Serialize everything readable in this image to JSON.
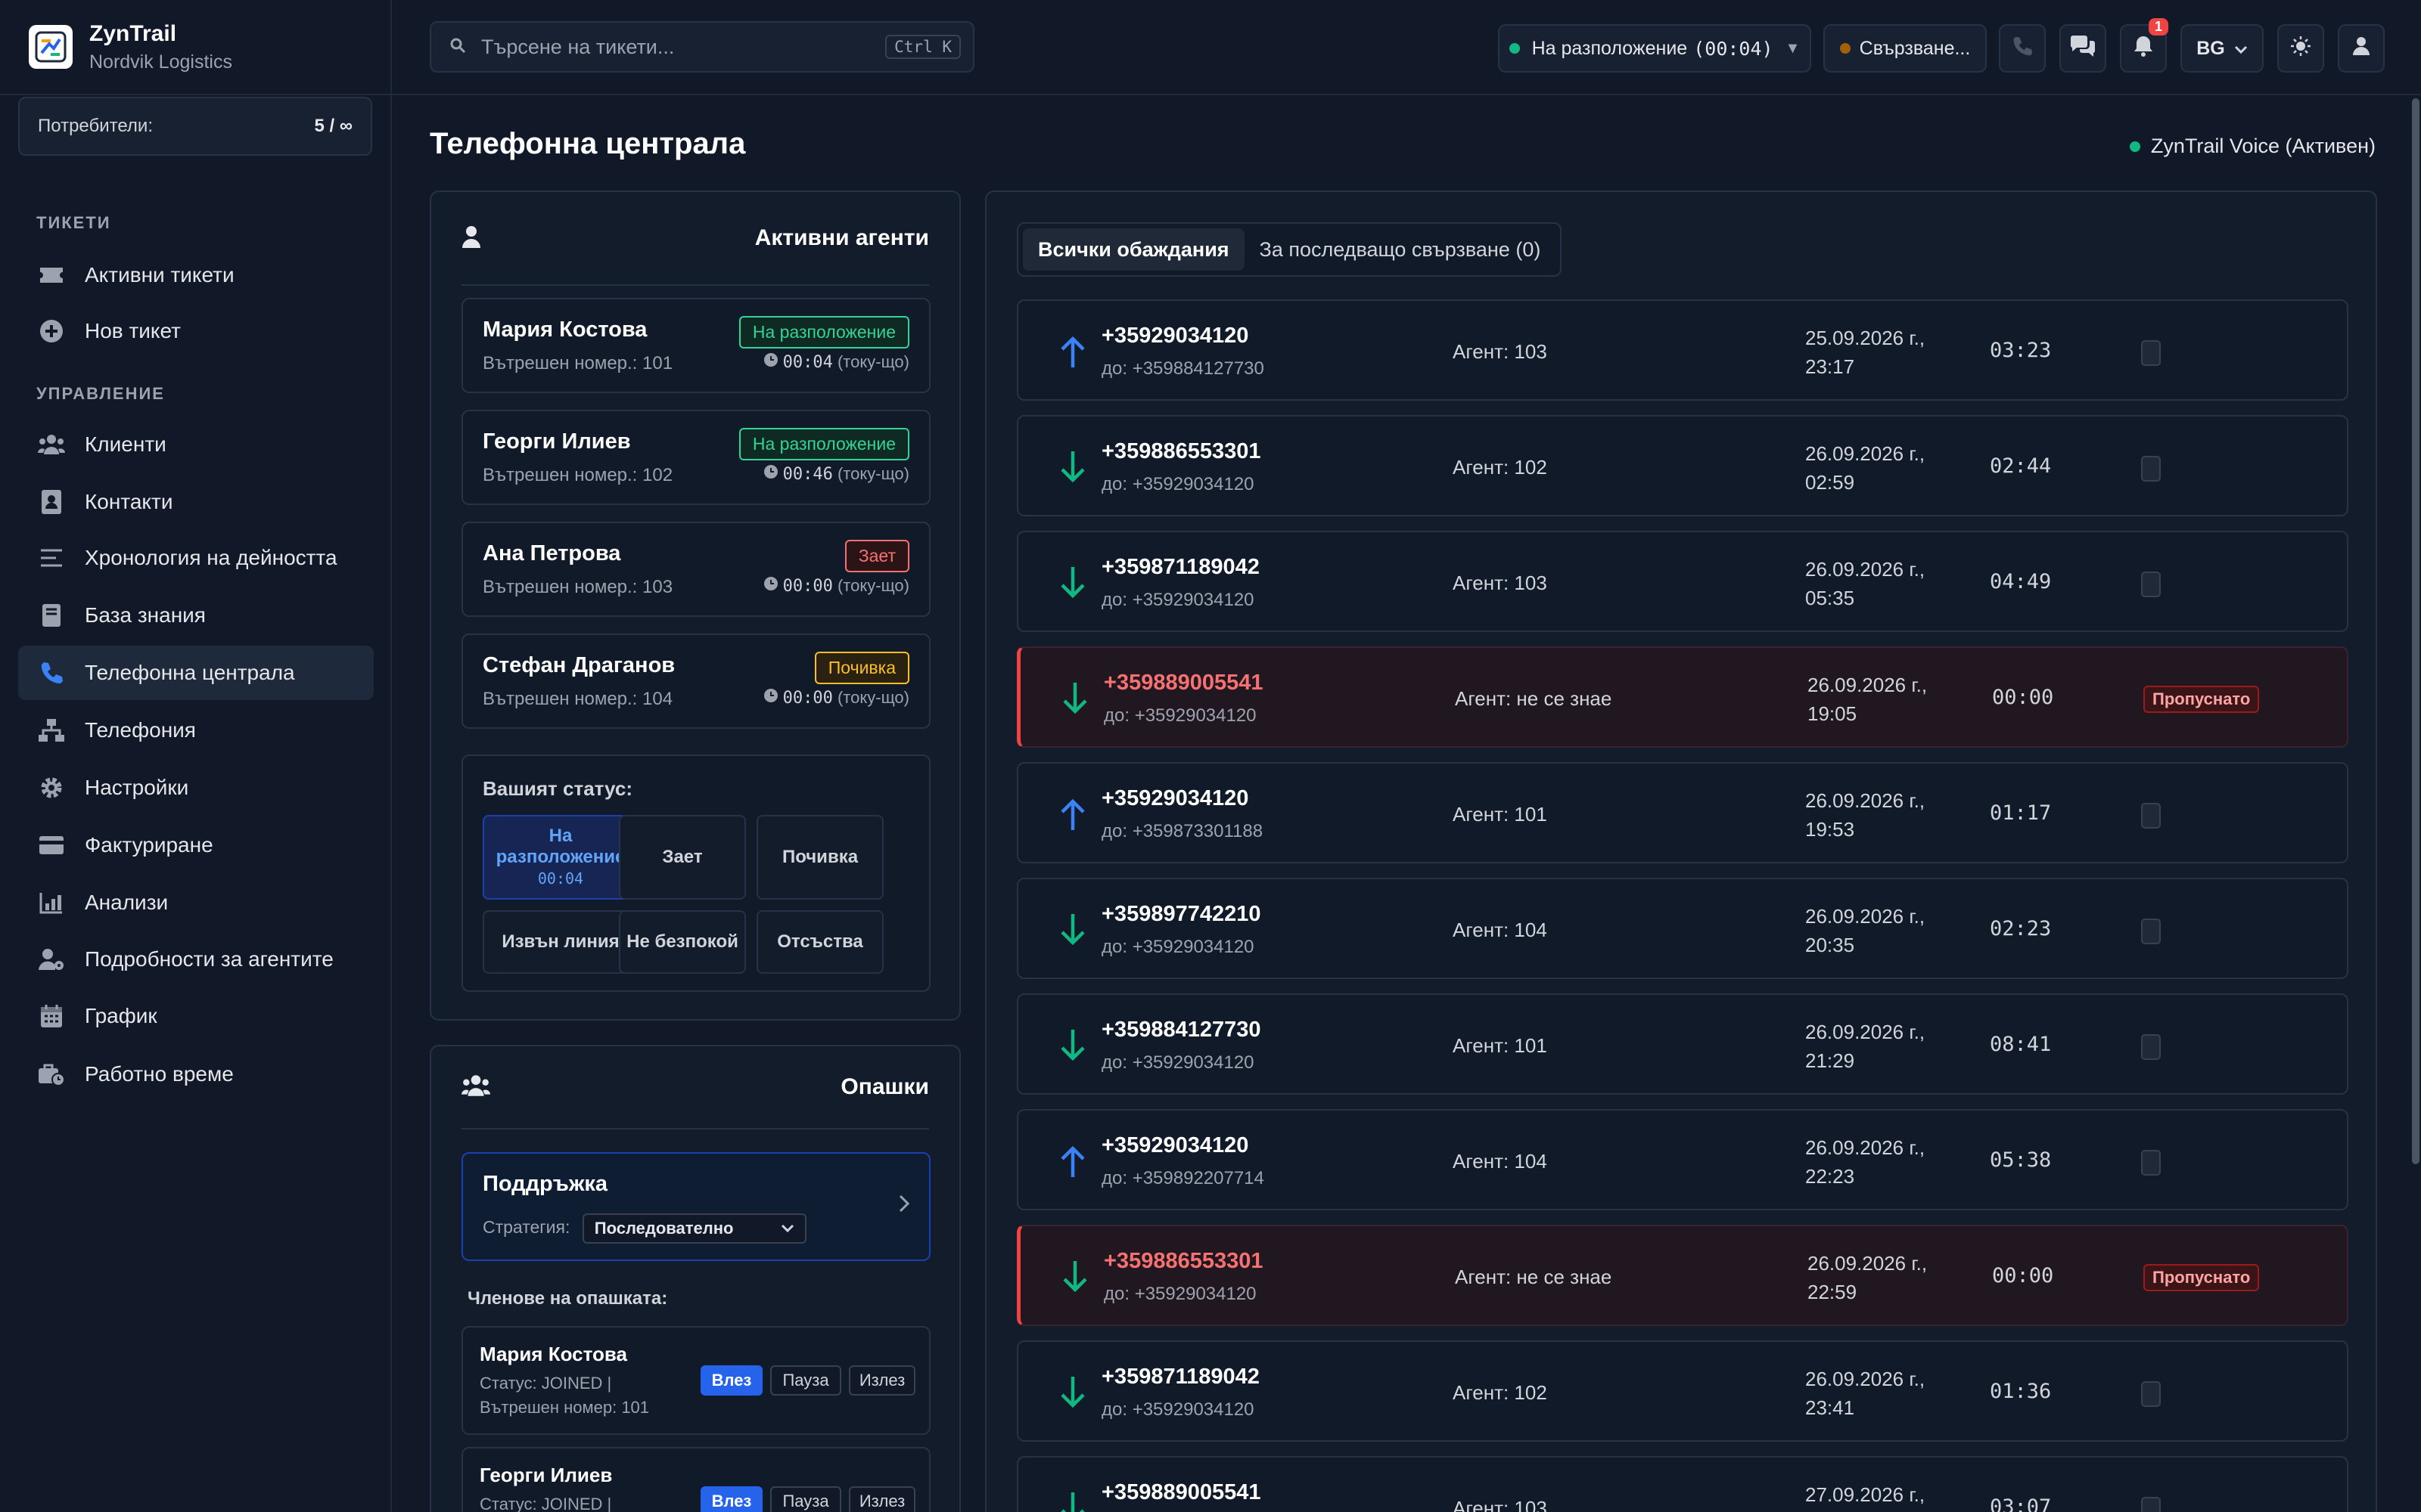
{
  "brand": {
    "name": "ZynTrail",
    "org": "Nordvik Logistics"
  },
  "users": {
    "label": "Потребители:",
    "count": "5 / ∞"
  },
  "nav": {
    "section_tickets": "ТИКЕТИ",
    "section_manage": "УПРАВЛЕНИЕ",
    "items": [
      {
        "label": "Активни тикети",
        "icon": "ticket-icon"
      },
      {
        "label": "Нов тикет",
        "icon": "plus-circle-icon"
      },
      {
        "label": "Клиенти",
        "icon": "users-icon"
      },
      {
        "label": "Контакти",
        "icon": "address-book-icon"
      },
      {
        "label": "Хронология на дейността",
        "icon": "list-icon"
      },
      {
        "label": "База знания",
        "icon": "book-icon"
      },
      {
        "label": "Телефонна централа",
        "icon": "phone-icon"
      },
      {
        "label": "Телефония",
        "icon": "network-icon"
      },
      {
        "label": "Настройки",
        "icon": "gear-icon"
      },
      {
        "label": "Фактуриране",
        "icon": "credit-card-icon"
      },
      {
        "label": "Анализи",
        "icon": "chart-icon"
      },
      {
        "label": "Подробности за агентите",
        "icon": "user-gear-icon"
      },
      {
        "label": "График",
        "icon": "calendar-icon"
      },
      {
        "label": "Работно време",
        "icon": "business-time-icon"
      }
    ]
  },
  "topbar": {
    "search_placeholder": "Търсене на тикети...",
    "shortcut": "Ctrl K",
    "availability": "На разположение",
    "availability_time": "(00:04)",
    "connecting": "Свързване...",
    "notifications": "1",
    "language": "BG"
  },
  "page": {
    "title": "Телефонна централа",
    "voice_status": "ZynTrail Voice (Активен)"
  },
  "agents": {
    "title": "Активни агенти",
    "ext_label": "Вътрешен номер.:",
    "ago": "(току-що)",
    "list": [
      {
        "name": "Мария Костова",
        "ext": "101",
        "status": "На разположение",
        "time": "00:04"
      },
      {
        "name": "Георги Илиев",
        "ext": "102",
        "status": "На разположение",
        "time": "00:46"
      },
      {
        "name": "Ана Петрова",
        "ext": "103",
        "status": "Зает",
        "time": "00:00"
      },
      {
        "name": "Стефан Драганов",
        "ext": "104",
        "status": "Почивка",
        "time": "00:00"
      }
    ]
  },
  "your_status": {
    "label": "Вашият статус:",
    "available": "На разположение",
    "available_time": "00:04",
    "busy": "Зает",
    "break": "Почивка",
    "offline": "Извън линия",
    "dnd": "Не безпокой",
    "away": "Отсъства"
  },
  "queues": {
    "title": "Опашки",
    "queue_name": "Поддръжка",
    "strategy_label": "Стратегия:",
    "strategy_value": "Последователно",
    "members_label": "Членове на опашката:",
    "members": [
      {
        "name": "Мария Костова",
        "status": "Статус: JOINED |",
        "ext": "Вътрешен номер: 101"
      },
      {
        "name": "Георги Илиев",
        "status": "Статус: JOINED |",
        "ext": ""
      }
    ],
    "btn_join": "Влез",
    "btn_pause": "Пауза",
    "btn_leave": "Излез"
  },
  "calls": {
    "tab_all": "Всички обаждания",
    "tab_callback": "За последващо свързване (0)",
    "missed_label": "Пропуснато",
    "list": [
      {
        "dir": "out",
        "number": "+35929034120",
        "to": "до: +359884127730",
        "agent": "Агент: 103",
        "date": "25.09.2026 г.,",
        "time": "23:17",
        "duration": "03:23",
        "missed": false
      },
      {
        "dir": "in",
        "number": "+359886553301",
        "to": "до: +35929034120",
        "agent": "Агент: 102",
        "date": "26.09.2026 г.,",
        "time": "02:59",
        "duration": "02:44",
        "missed": false
      },
      {
        "dir": "in",
        "number": "+359871189042",
        "to": "до: +35929034120",
        "agent": "Агент: 103",
        "date": "26.09.2026 г.,",
        "time": "05:35",
        "duration": "04:49",
        "missed": false
      },
      {
        "dir": "in",
        "number": "+359889005541",
        "to": "до: +35929034120",
        "agent": "Агент: не се знае",
        "date": "26.09.2026 г.,",
        "time": "19:05",
        "duration": "00:00",
        "missed": true
      },
      {
        "dir": "out",
        "number": "+35929034120",
        "to": "до: +359873301188",
        "agent": "Агент: 101",
        "date": "26.09.2026 г.,",
        "time": "19:53",
        "duration": "01:17",
        "missed": false
      },
      {
        "dir": "in",
        "number": "+359897742210",
        "to": "до: +35929034120",
        "agent": "Агент: 104",
        "date": "26.09.2026 г.,",
        "time": "20:35",
        "duration": "02:23",
        "missed": false
      },
      {
        "dir": "in",
        "number": "+359884127730",
        "to": "до: +35929034120",
        "agent": "Агент: 101",
        "date": "26.09.2026 г.,",
        "time": "21:29",
        "duration": "08:41",
        "missed": false
      },
      {
        "dir": "out",
        "number": "+35929034120",
        "to": "до: +359892207714",
        "agent": "Агент: 104",
        "date": "26.09.2026 г.,",
        "time": "22:23",
        "duration": "05:38",
        "missed": false
      },
      {
        "dir": "in",
        "number": "+359886553301",
        "to": "до: +35929034120",
        "agent": "Агент: не се знае",
        "date": "26.09.2026 г.,",
        "time": "22:59",
        "duration": "00:00",
        "missed": true
      },
      {
        "dir": "in",
        "number": "+359871189042",
        "to": "до: +35929034120",
        "agent": "Агент: 102",
        "date": "26.09.2026 г.,",
        "time": "23:41",
        "duration": "01:36",
        "missed": false
      },
      {
        "dir": "in",
        "number": "+359889005541",
        "to": "",
        "agent": "Агент: 103",
        "date": "27.09.2026 г.,",
        "time": "",
        "duration": "03:07",
        "missed": false
      }
    ]
  },
  "colors": {
    "accent": "#3b82f6",
    "success": "#10b981",
    "danger": "#ef4444",
    "warning": "#f59e0b"
  }
}
